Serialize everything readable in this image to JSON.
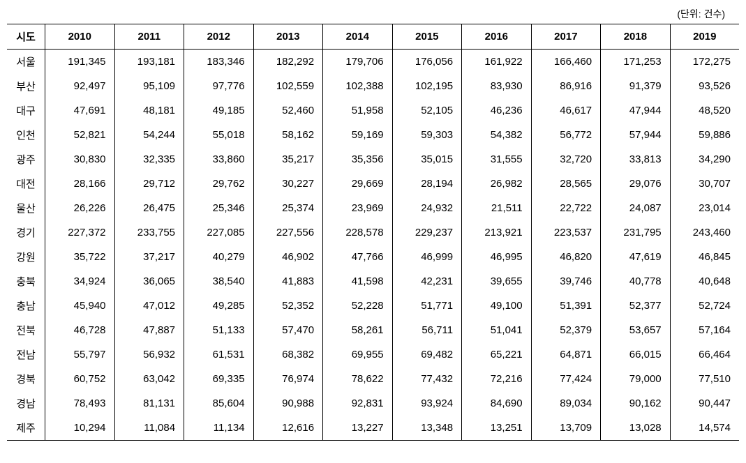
{
  "unit_label": "(단위: 건수)",
  "table": {
    "type": "table",
    "header_region": "시도",
    "years": [
      "2010",
      "2011",
      "2012",
      "2013",
      "2014",
      "2015",
      "2016",
      "2017",
      "2018",
      "2019"
    ],
    "rows": [
      {
        "region": "서울",
        "values": [
          "191,345",
          "193,181",
          "183,346",
          "182,292",
          "179,706",
          "176,056",
          "161,922",
          "166,460",
          "171,253",
          "172,275"
        ]
      },
      {
        "region": "부산",
        "values": [
          "92,497",
          "95,109",
          "97,776",
          "102,559",
          "102,388",
          "102,195",
          "83,930",
          "86,916",
          "91,379",
          "93,526"
        ]
      },
      {
        "region": "대구",
        "values": [
          "47,691",
          "48,181",
          "49,185",
          "52,460",
          "51,958",
          "52,105",
          "46,236",
          "46,617",
          "47,944",
          "48,520"
        ]
      },
      {
        "region": "인천",
        "values": [
          "52,821",
          "54,244",
          "55,018",
          "58,162",
          "59,169",
          "59,303",
          "54,382",
          "56,772",
          "57,944",
          "59,886"
        ]
      },
      {
        "region": "광주",
        "values": [
          "30,830",
          "32,335",
          "33,860",
          "35,217",
          "35,356",
          "35,015",
          "31,555",
          "32,720",
          "33,813",
          "34,290"
        ]
      },
      {
        "region": "대전",
        "values": [
          "28,166",
          "29,712",
          "29,762",
          "30,227",
          "29,669",
          "28,194",
          "26,982",
          "28,565",
          "29,076",
          "30,707"
        ]
      },
      {
        "region": "울산",
        "values": [
          "26,226",
          "26,475",
          "25,346",
          "25,374",
          "23,969",
          "24,932",
          "21,511",
          "22,722",
          "24,087",
          "23,014"
        ]
      },
      {
        "region": "경기",
        "values": [
          "227,372",
          "233,755",
          "227,085",
          "227,556",
          "228,578",
          "229,237",
          "213,921",
          "223,537",
          "231,795",
          "243,460"
        ]
      },
      {
        "region": "강원",
        "values": [
          "35,722",
          "37,217",
          "40,279",
          "46,902",
          "47,766",
          "46,999",
          "46,995",
          "46,820",
          "47,619",
          "46,845"
        ]
      },
      {
        "region": "충북",
        "values": [
          "34,924",
          "36,065",
          "38,540",
          "41,883",
          "41,598",
          "42,231",
          "39,655",
          "39,746",
          "40,778",
          "40,648"
        ]
      },
      {
        "region": "충남",
        "values": [
          "45,940",
          "47,012",
          "49,285",
          "52,352",
          "52,228",
          "51,771",
          "49,100",
          "51,391",
          "52,377",
          "52,724"
        ]
      },
      {
        "region": "전북",
        "values": [
          "46,728",
          "47,887",
          "51,133",
          "57,470",
          "58,261",
          "56,711",
          "51,041",
          "52,379",
          "53,657",
          "57,164"
        ]
      },
      {
        "region": "전남",
        "values": [
          "55,797",
          "56,932",
          "61,531",
          "68,382",
          "69,955",
          "69,482",
          "65,221",
          "64,871",
          "66,015",
          "66,464"
        ]
      },
      {
        "region": "경북",
        "values": [
          "60,752",
          "63,042",
          "69,335",
          "76,974",
          "78,622",
          "77,432",
          "72,216",
          "77,424",
          "79,000",
          "77,510"
        ]
      },
      {
        "region": "경남",
        "values": [
          "78,493",
          "81,131",
          "85,604",
          "90,988",
          "92,831",
          "93,924",
          "84,690",
          "89,034",
          "90,162",
          "90,447"
        ]
      },
      {
        "region": "제주",
        "values": [
          "10,294",
          "11,084",
          "11,134",
          "12,616",
          "13,227",
          "13,348",
          "13,251",
          "13,709",
          "13,028",
          "14,574"
        ]
      }
    ],
    "header_font_weight": "bold",
    "border_color": "#000000",
    "background_color": "#ffffff",
    "font_size": 15
  }
}
